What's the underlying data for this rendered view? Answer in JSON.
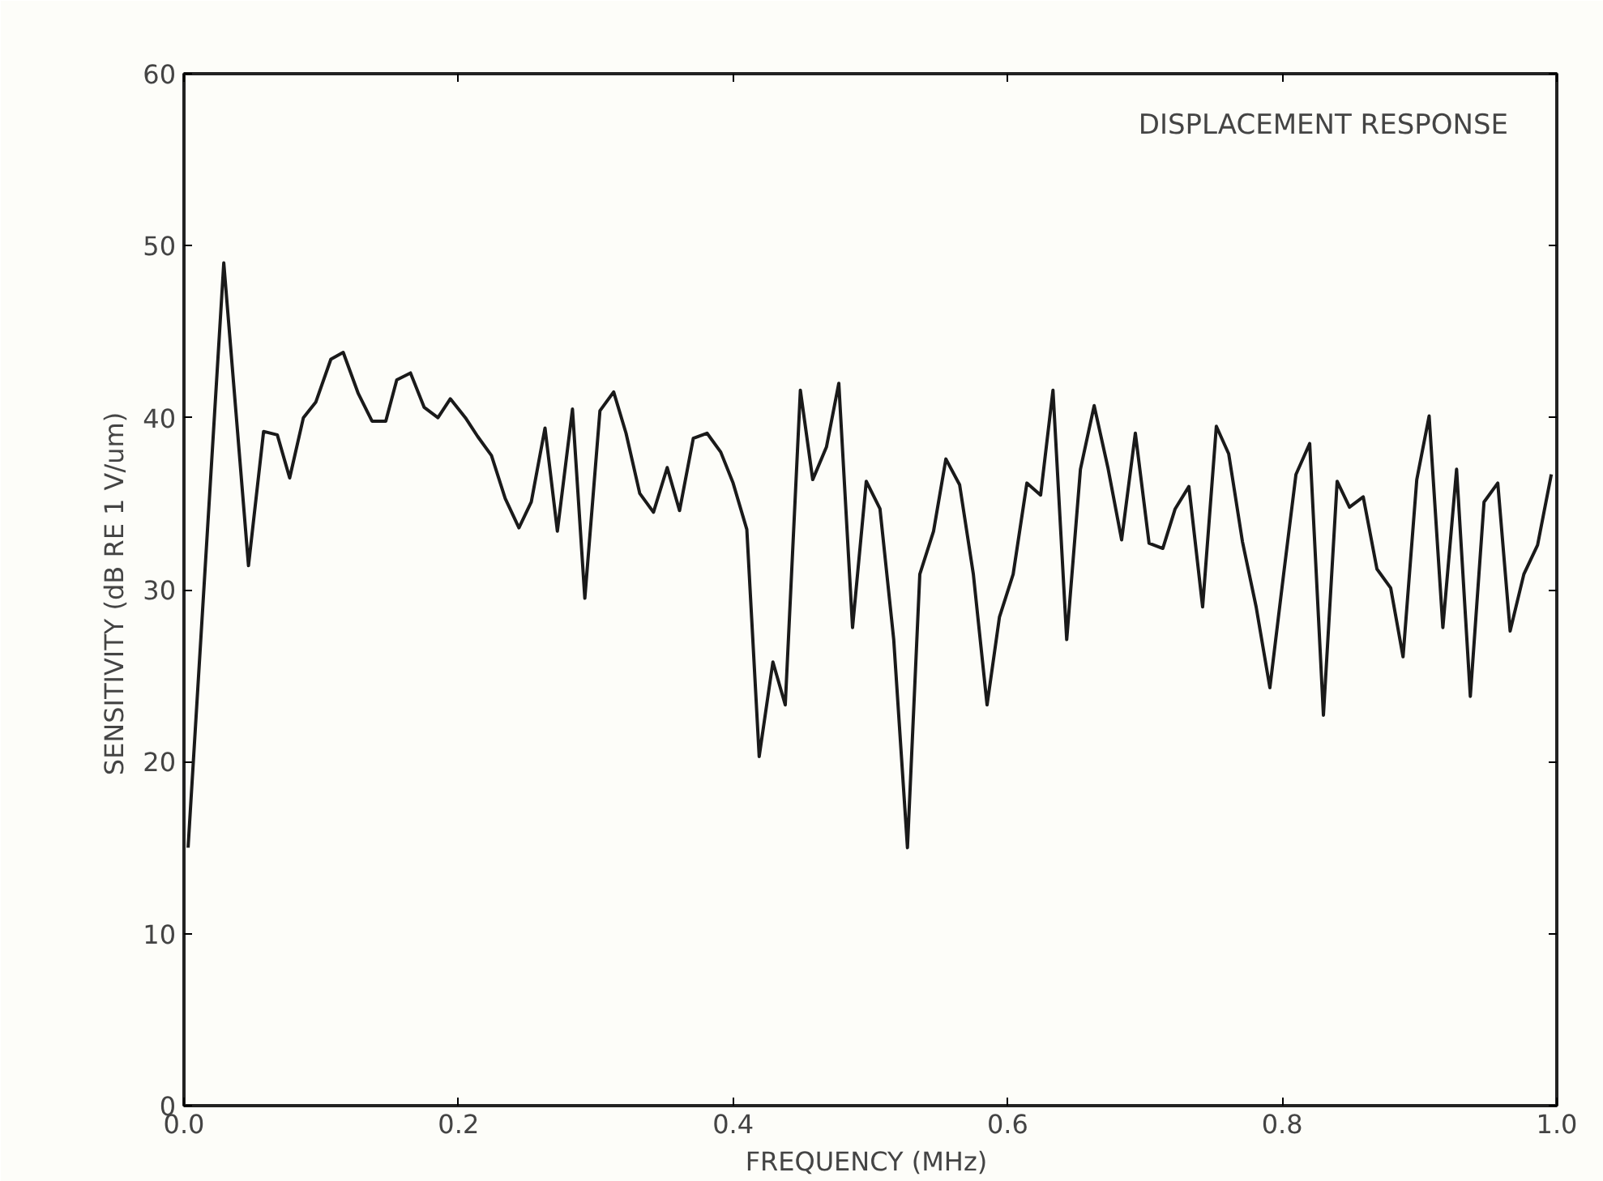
{
  "chart_data": {
    "type": "line",
    "xlabel": "FREQUENCY  (MHz)",
    "ylabel": "SENSITIVITY  (dB RE 1 V/um)",
    "annotations": [
      "DISPLACEMENT RESPONSE"
    ],
    "x": [
      0.003,
      0.029,
      0.047,
      0.058,
      0.068,
      0.077,
      0.087,
      0.096,
      0.107,
      0.116,
      0.127,
      0.137,
      0.147,
      0.155,
      0.165,
      0.175,
      0.185,
      0.194,
      0.205,
      0.214,
      0.224,
      0.234,
      0.244,
      0.253,
      0.263,
      0.272,
      0.283,
      0.292,
      0.303,
      0.313,
      0.322,
      0.332,
      0.342,
      0.352,
      0.361,
      0.371,
      0.381,
      0.391,
      0.4,
      0.41,
      0.419,
      0.429,
      0.438,
      0.449,
      0.458,
      0.468,
      0.477,
      0.487,
      0.497,
      0.507,
      0.517,
      0.527,
      0.536,
      0.546,
      0.555,
      0.565,
      0.575,
      0.585,
      0.594,
      0.604,
      0.614,
      0.624,
      0.633,
      0.643,
      0.653,
      0.663,
      0.673,
      0.683,
      0.693,
      0.703,
      0.713,
      0.722,
      0.732,
      0.742,
      0.752,
      0.761,
      0.771,
      0.781,
      0.791,
      0.801,
      0.81,
      0.82,
      0.83,
      0.84,
      0.849,
      0.859,
      0.869,
      0.879,
      0.888,
      0.898,
      0.907,
      0.917,
      0.927,
      0.937,
      0.947,
      0.957,
      0.966,
      0.976,
      0.986,
      0.996
    ],
    "values": [
      15.0,
      49.0,
      31.4,
      39.2,
      39.0,
      36.5,
      40.0,
      40.9,
      43.4,
      43.8,
      41.4,
      39.8,
      39.8,
      42.2,
      42.6,
      40.6,
      40.0,
      41.1,
      40.0,
      38.9,
      37.8,
      35.3,
      33.6,
      35.1,
      39.4,
      33.4,
      40.5,
      29.5,
      40.4,
      41.5,
      39.1,
      35.6,
      34.5,
      37.1,
      34.6,
      38.8,
      39.1,
      38.0,
      36.2,
      33.5,
      20.3,
      25.8,
      23.3,
      41.6,
      36.4,
      38.3,
      42.0,
      27.8,
      36.3,
      34.7,
      27.1,
      15.0,
      30.9,
      33.4,
      37.6,
      36.1,
      30.9,
      23.3,
      28.4,
      30.9,
      36.2,
      35.5,
      41.6,
      27.1,
      37.0,
      40.7,
      37.1,
      32.9,
      39.1,
      32.7,
      32.4,
      34.7,
      36.0,
      29.0,
      39.5,
      37.9,
      32.8,
      29.0,
      24.3,
      30.9,
      36.7,
      38.5,
      22.7,
      36.3,
      34.8,
      35.4,
      31.2,
      30.1,
      26.1,
      36.4,
      40.1,
      27.8,
      37.0,
      23.8,
      35.1,
      36.2,
      27.6,
      30.9,
      32.6,
      36.7
    ],
    "color": "#1a1a1a",
    "marker": "none",
    "line_style": "solid",
    "grid": false,
    "xlim": [
      0,
      1
    ],
    "ylim": [
      0,
      60
    ],
    "xticks": [
      {
        "value": 0,
        "label": "0.0"
      },
      {
        "value": 0.2,
        "label": "0.2"
      },
      {
        "value": 0.4,
        "label": "0.4"
      },
      {
        "value": 0.6,
        "label": "0.6"
      },
      {
        "value": 0.8,
        "label": "0.8"
      },
      {
        "value": 1,
        "label": "1.0"
      }
    ],
    "yticks": [
      0,
      10,
      20,
      30,
      40,
      50,
      60
    ]
  }
}
